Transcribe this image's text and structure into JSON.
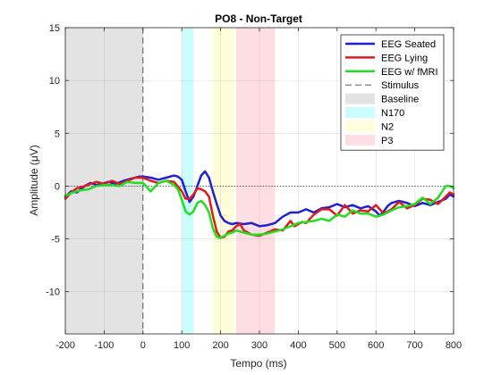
{
  "chart_data": {
    "type": "line",
    "title": "PO8 - Non-Target",
    "xlabel": "Tempo (ms)",
    "ylabel": "Amplitude (μV)",
    "xlim": [
      -200,
      800
    ],
    "ylim": [
      -14,
      15
    ],
    "xticks": [
      -200,
      -100,
      0,
      100,
      200,
      300,
      400,
      500,
      600,
      700,
      800
    ],
    "yticks": [
      15,
      10,
      5,
      0,
      -5,
      -10
    ],
    "grid": true,
    "legend_placement": "top-right",
    "regions": [
      {
        "name": "Baseline",
        "x0": -200,
        "x1": 0,
        "color": "#e3e3e3"
      },
      {
        "name": "N170",
        "x0": 100,
        "x1": 130,
        "color": "#ccfdfd"
      },
      {
        "name": "N2",
        "x0": 180,
        "x1": 235,
        "color": "#fefdd9"
      },
      {
        "name": "P3",
        "x0": 240,
        "x1": 340,
        "color": "#fedee2"
      }
    ],
    "stimulus": {
      "name": "Stimulus",
      "x": 0
    },
    "series": [
      {
        "name": "EEG Seated",
        "color": "#1f20d6",
        "x": [
          -200,
          -185,
          -170,
          -150,
          -135,
          -120,
          -105,
          -90,
          -70,
          -50,
          -30,
          -10,
          0,
          20,
          40,
          60,
          80,
          90,
          100,
          110,
          120,
          130,
          140,
          150,
          160,
          170,
          180,
          190,
          200,
          210,
          220,
          230,
          240,
          260,
          280,
          300,
          320,
          340,
          360,
          380,
          400,
          420,
          440,
          460,
          480,
          500,
          520,
          540,
          560,
          580,
          600,
          610,
          620,
          630,
          640,
          660,
          680,
          700,
          720,
          740,
          760,
          780,
          790,
          800
        ],
        "values": [
          -1,
          -0.5,
          -0.6,
          0,
          0.3,
          0.1,
          0.2,
          0.4,
          0.2,
          0.5,
          0.7,
          0.9,
          0.9,
          0.8,
          0.6,
          0.8,
          1,
          0.9,
          0.6,
          -0.5,
          -1.5,
          -1,
          0,
          1,
          1.4,
          0.8,
          -0.5,
          -1.7,
          -2.8,
          -3.3,
          -3.5,
          -3.6,
          -3.5,
          -3.6,
          -3.5,
          -3.8,
          -3.7,
          -3.5,
          -2.9,
          -2.5,
          -2.5,
          -2.2,
          -2.5,
          -2.1,
          -2,
          -1.7,
          -2,
          -1.8,
          -2.1,
          -1.9,
          -2.4,
          -2.8,
          -2.4,
          -1.9,
          -1.6,
          -1.4,
          -1.6,
          -1.9,
          -1.6,
          -1.8,
          -1.5,
          -1.2,
          -0.8,
          -1
        ]
      },
      {
        "name": "EEG Lying",
        "color": "#e31a1c",
        "x": [
          -200,
          -185,
          -170,
          -150,
          -135,
          -120,
          -100,
          -80,
          -60,
          -40,
          -20,
          0,
          20,
          40,
          60,
          80,
          100,
          110,
          120,
          130,
          140,
          150,
          160,
          170,
          180,
          190,
          200,
          210,
          220,
          230,
          240,
          250,
          260,
          280,
          300,
          320,
          340,
          360,
          380,
          390,
          400,
          410,
          420,
          440,
          460,
          480,
          500,
          520,
          540,
          560,
          580,
          600,
          620,
          640,
          660,
          680,
          700,
          720,
          740,
          760,
          780,
          790,
          800
        ],
        "values": [
          -1.2,
          -0.6,
          -0.2,
          0,
          0.2,
          0.4,
          0.2,
          0.5,
          0.2,
          0.5,
          0.8,
          0.8,
          0.5,
          0.3,
          0.5,
          0.4,
          -0.5,
          -1.2,
          -1.2,
          -0.8,
          -0.2,
          -0.3,
          -0.5,
          -1,
          -2.8,
          -4.3,
          -4.9,
          -4.8,
          -4.3,
          -4.2,
          -3.8,
          -3.6,
          -4.2,
          -4.6,
          -4.7,
          -4.4,
          -4.1,
          -4.2,
          -3.3,
          -3.8,
          -3.6,
          -3.4,
          -3.5,
          -2.7,
          -2.2,
          -2.2,
          -2.8,
          -1.8,
          -2.6,
          -2.3,
          -2.4,
          -1.8,
          -2.6,
          -2.2,
          -1.5,
          -2.1,
          -1.8,
          -1.2,
          -1.3,
          -1.7,
          -1,
          -0.6,
          -0.8
        ]
      },
      {
        "name": "EEG w/ fMRI",
        "color": "#1fe01f",
        "x": [
          -200,
          -180,
          -160,
          -140,
          -120,
          -100,
          -80,
          -60,
          -40,
          -20,
          0,
          20,
          40,
          60,
          80,
          90,
          100,
          110,
          120,
          130,
          140,
          150,
          160,
          170,
          180,
          190,
          200,
          210,
          220,
          230,
          240,
          260,
          280,
          300,
          320,
          340,
          360,
          380,
          400,
          420,
          440,
          460,
          480,
          500,
          520,
          540,
          560,
          580,
          600,
          620,
          640,
          660,
          680,
          700,
          720,
          740,
          760,
          780,
          790,
          800
        ],
        "values": [
          -0.9,
          -0.6,
          -0.4,
          -0.3,
          0,
          0.1,
          0.1,
          0,
          0.4,
          0.3,
          0.3,
          -0.5,
          0.3,
          0.5,
          0.1,
          -0.3,
          -1.3,
          -2.4,
          -2.7,
          -2.4,
          -1.6,
          -1.4,
          -1.8,
          -2.5,
          -4,
          -4.8,
          -4.9,
          -4.7,
          -4.5,
          -4.4,
          -4.2,
          -4.4,
          -4.6,
          -4.6,
          -4.5,
          -4.3,
          -4.1,
          -3.8,
          -3.5,
          -3.4,
          -3.3,
          -3.1,
          -3.3,
          -2.7,
          -2.9,
          -2.3,
          -2.6,
          -2.6,
          -2.9,
          -2.7,
          -2.3,
          -2,
          -1.9,
          -1.7,
          -1.1,
          -1.7,
          -1.1,
          0,
          0,
          -0.2
        ]
      }
    ]
  }
}
